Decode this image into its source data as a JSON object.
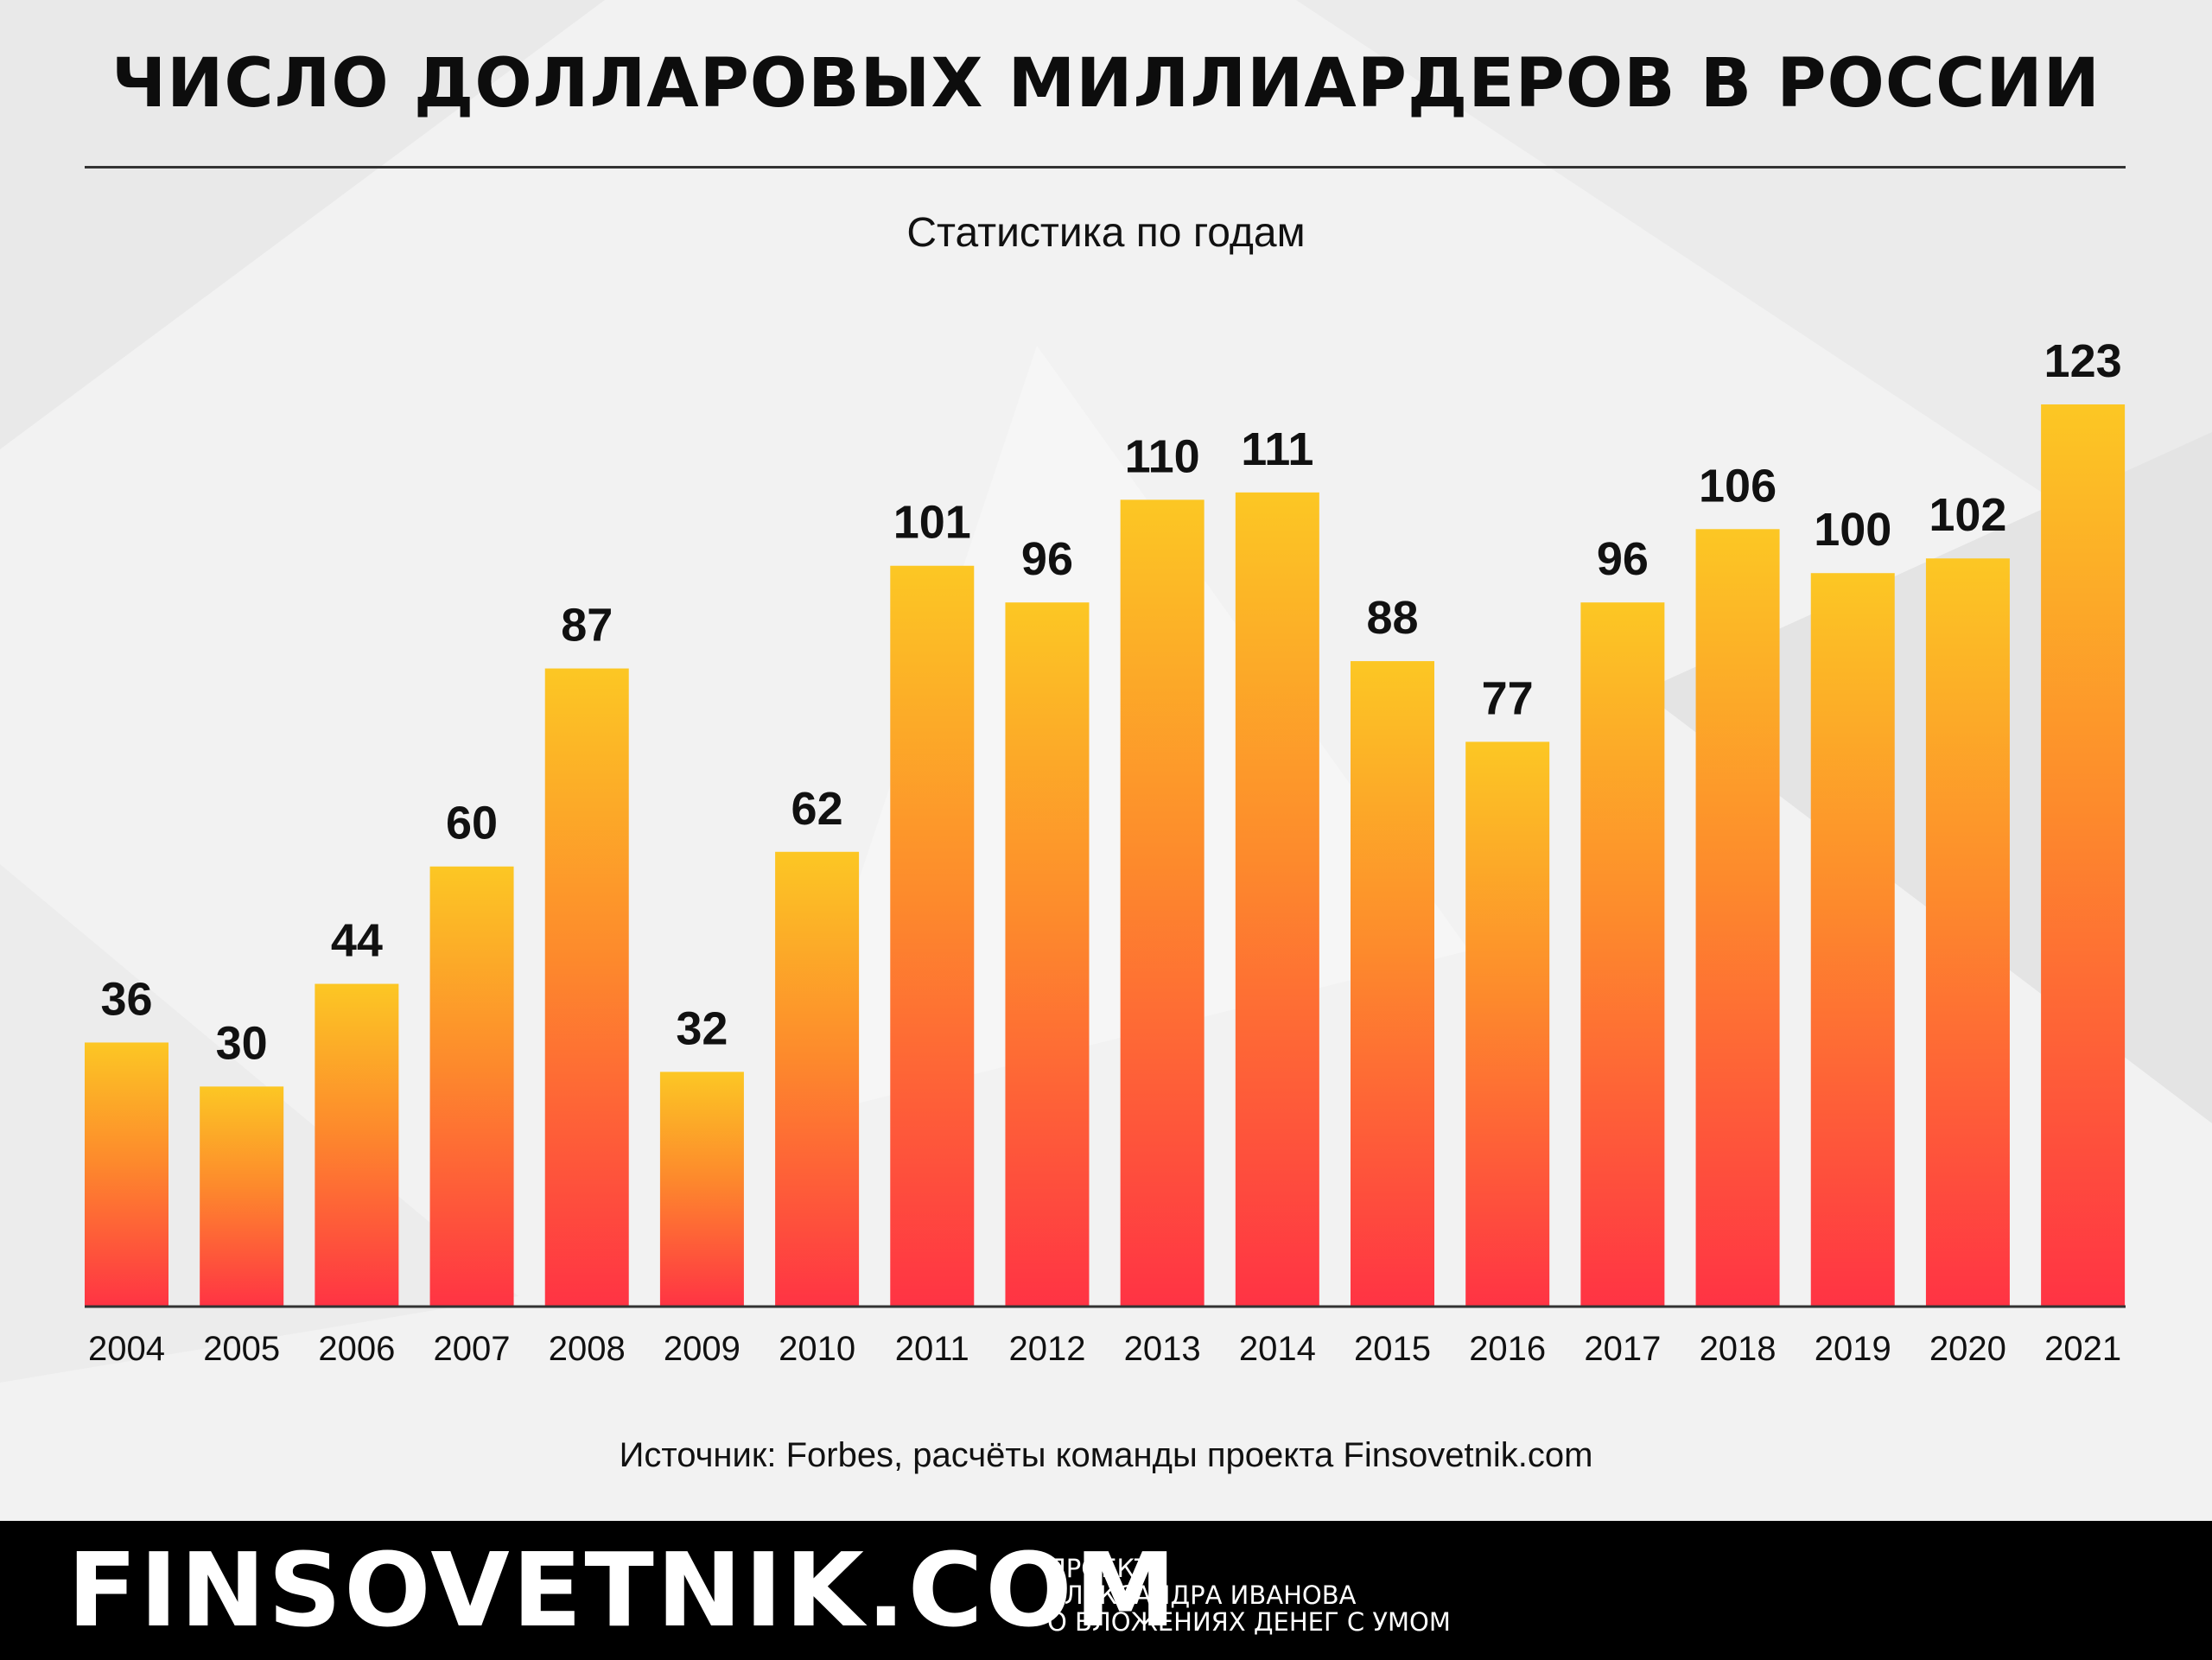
{
  "header": {
    "title": "ЧИСЛО ДОЛЛАРОВЫХ МИЛЛИАРДЕРОВ В РОССИИ",
    "subtitle": "Статистика по годам"
  },
  "source_note": "Источник: Forbes, расчёты команды проекта Finsovetnik.com",
  "footer": {
    "logo": "FINSOVETNIK.COM",
    "tagline_1": "ПРОЕКТ",
    "tagline_2": "АЛЕКСАНДРА ИВАНОВА",
    "tagline_3": "О ВЛОЖЕНИЯХ ДЕНЕГ С УМОМ"
  },
  "colors": {
    "bar_top": "#fcc724",
    "bar_mid": "#fd8a2c",
    "bar_bottom": "#ff3344",
    "text": "#111111",
    "footer_bg": "#000000"
  },
  "chart_data": {
    "type": "bar",
    "title": "ЧИСЛО ДОЛЛАРОВЫХ МИЛЛИАРДЕРОВ В РОССИИ",
    "subtitle": "Статистика по годам",
    "xlabel": "",
    "ylabel": "",
    "categories": [
      "2004",
      "2005",
      "2006",
      "2007",
      "2008",
      "2009",
      "2010",
      "2011",
      "2012",
      "2013",
      "2014",
      "2015",
      "2016",
      "2017",
      "2018",
      "2019",
      "2020",
      "2021"
    ],
    "values": [
      36,
      30,
      44,
      60,
      87,
      32,
      62,
      101,
      96,
      110,
      111,
      88,
      77,
      96,
      106,
      100,
      102,
      123
    ],
    "data_labels": true,
    "grid": false,
    "legend": "none",
    "ylim": [
      0,
      123
    ]
  }
}
